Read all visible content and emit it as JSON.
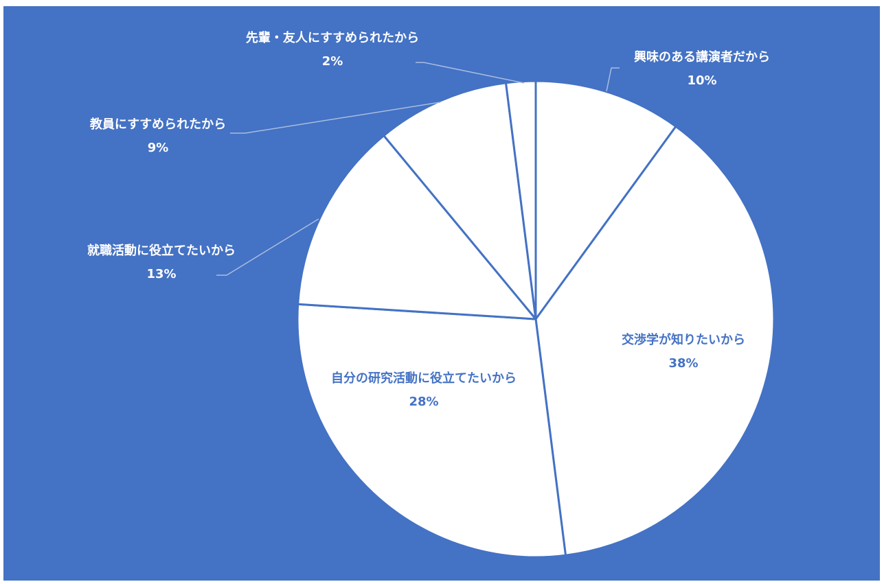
{
  "chart_data": {
    "type": "pie",
    "slices": [
      {
        "label": "興味のある講演者だから",
        "value": 10,
        "value_label": "10%"
      },
      {
        "label": "交渉学が知りたいから",
        "value": 38,
        "value_label": "38%"
      },
      {
        "label": "自分の研究活動に役立てたいから",
        "value": 28,
        "value_label": "28%"
      },
      {
        "label": "就職活動に役立てたいから",
        "value": 13,
        "value_label": "13%"
      },
      {
        "label": "教員にすすめられたから",
        "value": 9,
        "value_label": "9%"
      },
      {
        "label": "先輩・友人にすすめられたから",
        "value": 2,
        "value_label": "2%"
      }
    ],
    "start_angle_deg": 0,
    "direction": "clockwise",
    "legend": "none"
  },
  "colors": {
    "background": "#4472c4",
    "slice_fill": "#ffffff",
    "slice_border": "#4472c4",
    "outside_label": "#ffffff",
    "inside_label": "#4472c4",
    "leader_line": "#a9bde0"
  }
}
